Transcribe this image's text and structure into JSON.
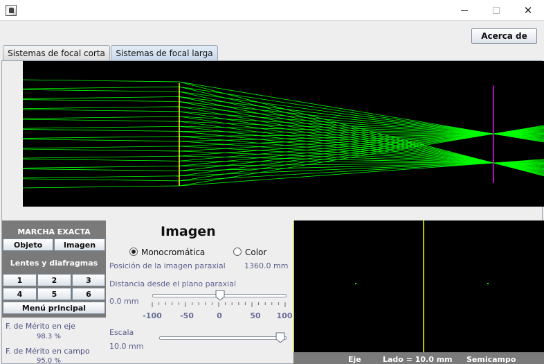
{
  "window": {
    "title": ""
  },
  "header": {
    "about_label": "Acerca de"
  },
  "tabs": [
    {
      "label": "Sistemas de focal corta",
      "selected": false
    },
    {
      "label": "Sistemas de focal larga",
      "selected": true
    }
  ],
  "colors": {
    "rays": "#00ff00",
    "lens": "#ffff00",
    "image_plane": "#ff00ff",
    "canvas_bg": "#000000",
    "panel_bg": "#7a7a7a",
    "label": "#5b5f8c"
  },
  "left_panel": {
    "exact_trace_title": "MARCHA EXACTA",
    "object_label": "Objeto",
    "image_label": "Imagen",
    "lenses_title": "Lentes y diafragmas",
    "lens_buttons": [
      "1",
      "2",
      "3",
      "4",
      "5",
      "6"
    ],
    "main_menu_label": "Menú principal"
  },
  "merit": {
    "axis_label": "F. de Mérito en eje",
    "axis_value": "98.3 %",
    "field_label": "F. de Mérito en campo",
    "field_value": "95.0 %"
  },
  "image_panel": {
    "title": "Imagen",
    "mono_label": "Monocromática",
    "color_label": "Color",
    "mode": "monocromatica",
    "paraxial_pos_label": "Posición de la imagen paraxial",
    "paraxial_pos_value": "1360.0 mm",
    "distance_label": "Distancia desde el plano paraxial",
    "distance_value": "0.0 mm",
    "distance_slider": {
      "min": -100,
      "max": 100,
      "value": 0,
      "ticks": [
        "-100",
        "-50",
        "0",
        "50",
        "100"
      ]
    },
    "scale_label": "Escala",
    "scale_value": "10.0 mm",
    "scale_slider_fraction": 1.0
  },
  "spot_view": {
    "axis_label": "Eje",
    "side_label": "Lado = 10.0 mm",
    "field_label": "Semicampo"
  }
}
